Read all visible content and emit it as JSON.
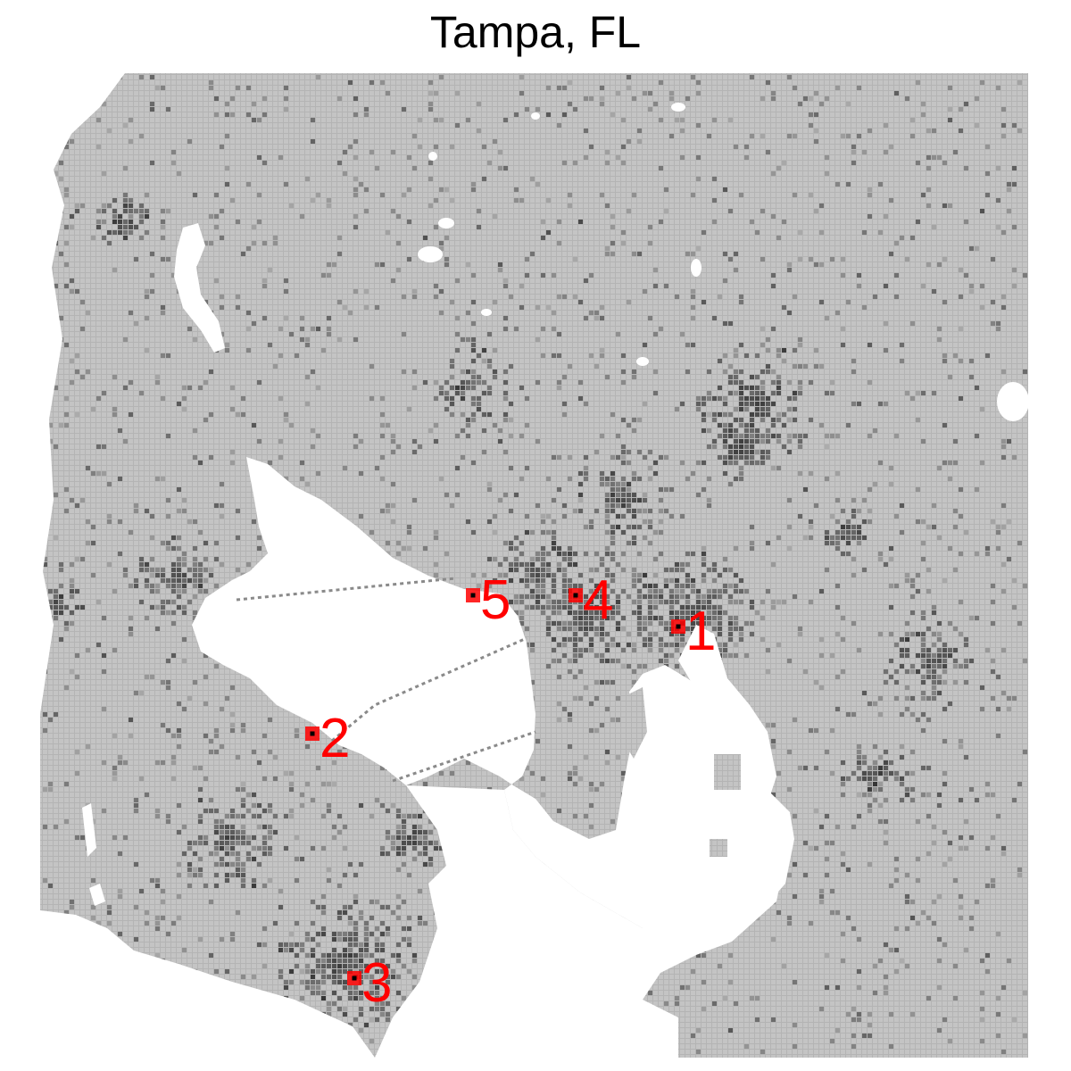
{
  "title": "Tampa, FL",
  "colors": {
    "land": "#bdbdbd",
    "water": "#ffffff",
    "urban_dark": "#4a4a4a",
    "marker": "#ff0000",
    "marker_dot": "#000000"
  },
  "markers": [
    {
      "id": "1",
      "label": "1"
    },
    {
      "id": "2",
      "label": "2"
    },
    {
      "id": "3",
      "label": "3"
    },
    {
      "id": "4",
      "label": "4"
    },
    {
      "id": "5",
      "label": "5"
    }
  ]
}
